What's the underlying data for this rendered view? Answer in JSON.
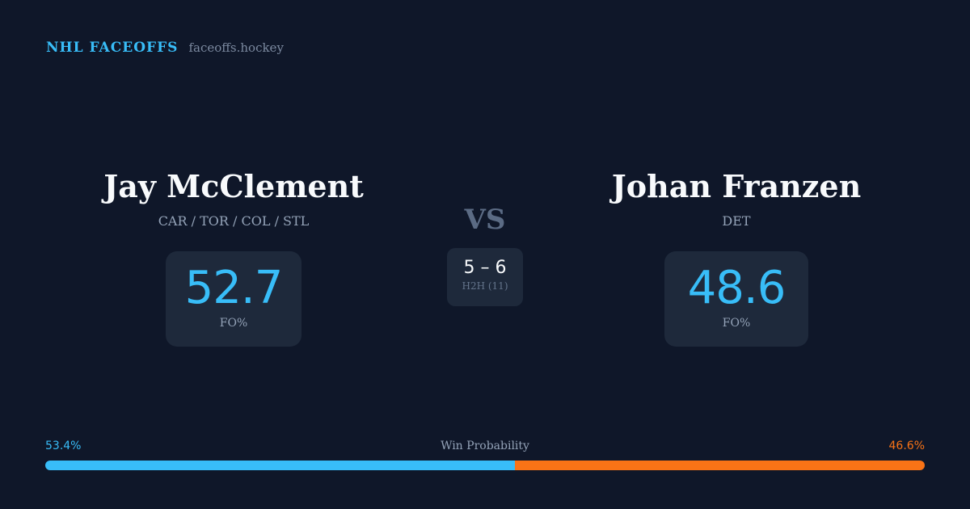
{
  "brand": {
    "title": "NHL FACEOFFS",
    "url": "faceoffs.hockey"
  },
  "player1": {
    "name": "Jay McClement",
    "teams": "CAR / TOR / COL / STL",
    "fo_pct": "52.7",
    "fo_label": "FO%"
  },
  "player2": {
    "name": "Johan Franzen",
    "teams": "DET",
    "fo_pct": "48.6",
    "fo_label": "FO%"
  },
  "vs": "VS",
  "h2h": {
    "score": "5 – 6",
    "label": "H2H (11)"
  },
  "win_probability": {
    "label": "Win Probability",
    "p1": "53.4%",
    "p2": "46.6%",
    "p1_value": 53.4,
    "p2_value": 46.6,
    "p1_color": "#38bdf8",
    "p2_color": "#f97316"
  }
}
